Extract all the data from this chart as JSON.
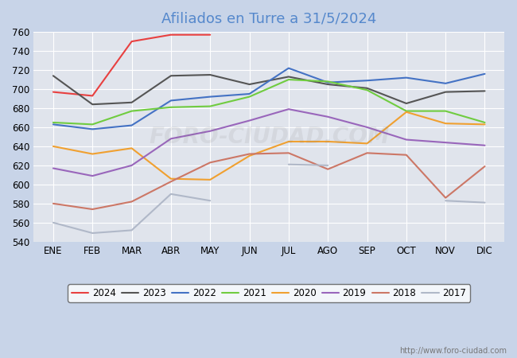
{
  "title": "Afiliados en Turre a 31/5/2024",
  "title_color": "#5588cc",
  "fig_bg": "#c8d4e8",
  "plot_bg": "#e0e4ec",
  "ylim": [
    540,
    760
  ],
  "yticks": [
    540,
    560,
    580,
    600,
    620,
    640,
    660,
    680,
    700,
    720,
    740,
    760
  ],
  "months": [
    "ENE",
    "FEB",
    "MAR",
    "ABR",
    "MAY",
    "JUN",
    "JUL",
    "AGO",
    "SEP",
    "OCT",
    "NOV",
    "DIC"
  ],
  "watermark": "http://www.foro-ciudad.com",
  "series": [
    {
      "label": "2024",
      "color": "#e84040",
      "data": [
        697,
        693,
        750,
        757,
        757,
        null,
        null,
        null,
        null,
        null,
        null,
        null
      ]
    },
    {
      "label": "2023",
      "color": "#555555",
      "data": [
        714,
        684,
        686,
        714,
        715,
        705,
        713,
        705,
        701,
        685,
        697,
        698
      ]
    },
    {
      "label": "2022",
      "color": "#4472c4",
      "data": [
        663,
        658,
        662,
        688,
        692,
        695,
        722,
        707,
        709,
        712,
        706,
        716
      ]
    },
    {
      "label": "2021",
      "color": "#70cc40",
      "data": [
        665,
        663,
        677,
        681,
        682,
        692,
        710,
        708,
        699,
        677,
        677,
        665
      ]
    },
    {
      "label": "2020",
      "color": "#f0a030",
      "data": [
        640,
        632,
        638,
        606,
        605,
        630,
        645,
        645,
        643,
        676,
        664,
        663
      ]
    },
    {
      "label": "2019",
      "color": "#9966bb",
      "data": [
        617,
        609,
        620,
        648,
        656,
        667,
        679,
        671,
        660,
        647,
        644,
        641
      ]
    },
    {
      "label": "2018",
      "color": "#cc7766",
      "data": [
        580,
        574,
        582,
        603,
        623,
        632,
        633,
        616,
        633,
        631,
        586,
        619
      ]
    },
    {
      "label": "2017",
      "color": "#b0b8c8",
      "data": [
        560,
        549,
        552,
        590,
        583,
        null,
        621,
        620,
        null,
        null,
        583,
        581
      ]
    }
  ]
}
